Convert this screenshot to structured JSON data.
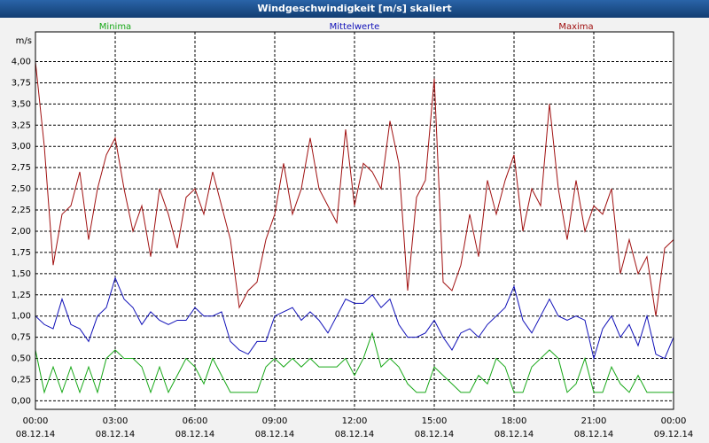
{
  "chart_data": {
    "type": "line",
    "title": "Windgeschwindigkeit [m/s] skaliert",
    "y_axis_label": "m/s",
    "x": [
      0,
      20,
      40,
      60,
      80,
      100,
      120,
      140,
      160,
      180,
      200,
      220,
      240,
      260,
      280,
      300,
      320,
      340,
      360,
      380,
      400,
      420,
      440,
      460,
      480,
      500,
      520,
      540,
      560,
      580,
      600,
      620,
      640,
      660,
      680,
      700,
      720,
      740,
      760,
      780,
      800,
      820,
      840,
      860,
      880,
      900,
      920,
      940,
      960,
      980,
      1000,
      1020,
      1040,
      1060,
      1080,
      1100,
      1120,
      1140,
      1160,
      1180,
      1200,
      1220,
      1240,
      1260,
      1280,
      1300,
      1320,
      1340,
      1360,
      1380,
      1400,
      1420,
      1440
    ],
    "series": [
      {
        "name": "Minima",
        "color": "#18a818",
        "values": [
          0.6,
          0.1,
          0.4,
          0.1,
          0.4,
          0.1,
          0.4,
          0.1,
          0.5,
          0.6,
          0.5,
          0.5,
          0.4,
          0.1,
          0.4,
          0.1,
          0.3,
          0.5,
          0.4,
          0.2,
          0.5,
          0.3,
          0.1,
          0.1,
          0.1,
          0.1,
          0.4,
          0.5,
          0.4,
          0.5,
          0.4,
          0.5,
          0.4,
          0.4,
          0.4,
          0.5,
          0.3,
          0.5,
          0.8,
          0.4,
          0.5,
          0.4,
          0.2,
          0.1,
          0.1,
          0.4,
          0.3,
          0.2,
          0.1,
          0.1,
          0.3,
          0.2,
          0.5,
          0.4,
          0.1,
          0.1,
          0.4,
          0.5,
          0.6,
          0.5,
          0.1,
          0.2,
          0.5,
          0.1,
          0.1,
          0.4,
          0.2,
          0.1,
          0.3,
          0.1,
          0.1,
          0.1,
          0.1
        ]
      },
      {
        "name": "Mittelwerte",
        "color": "#1010b8",
        "values": [
          1.0,
          0.9,
          0.85,
          1.2,
          0.9,
          0.85,
          0.7,
          1.0,
          1.1,
          1.45,
          1.2,
          1.1,
          0.9,
          1.05,
          0.95,
          0.9,
          0.95,
          0.95,
          1.1,
          1.0,
          1.0,
          1.05,
          0.7,
          0.6,
          0.55,
          0.7,
          0.7,
          1.0,
          1.05,
          1.1,
          0.95,
          1.05,
          0.95,
          0.8,
          1.0,
          1.2,
          1.15,
          1.15,
          1.25,
          1.1,
          1.2,
          0.9,
          0.75,
          0.75,
          0.8,
          0.95,
          0.75,
          0.6,
          0.8,
          0.85,
          0.75,
          0.9,
          1.0,
          1.1,
          1.35,
          0.95,
          0.8,
          1.0,
          1.2,
          1.0,
          0.95,
          1.0,
          0.95,
          0.5,
          0.85,
          1.0,
          0.75,
          0.9,
          0.65,
          1.0,
          0.55,
          0.5,
          0.75
        ]
      },
      {
        "name": "Maxima",
        "color": "#a01010",
        "values": [
          4.0,
          3.0,
          1.6,
          2.2,
          2.3,
          2.7,
          1.9,
          2.5,
          2.9,
          3.1,
          2.5,
          2.0,
          2.3,
          1.7,
          2.5,
          2.2,
          1.8,
          2.4,
          2.5,
          2.2,
          2.7,
          2.3,
          1.9,
          1.1,
          1.3,
          1.4,
          1.9,
          2.2,
          2.8,
          2.2,
          2.5,
          3.1,
          2.5,
          2.3,
          2.1,
          3.2,
          2.3,
          2.8,
          2.7,
          2.5,
          3.3,
          2.8,
          1.3,
          2.4,
          2.6,
          3.8,
          1.4,
          1.3,
          1.6,
          2.2,
          1.7,
          2.6,
          2.2,
          2.6,
          2.9,
          2.0,
          2.5,
          2.3,
          3.5,
          2.5,
          1.9,
          2.6,
          2.0,
          2.3,
          2.2,
          2.5,
          1.5,
          1.9,
          1.5,
          1.7,
          1.0,
          1.8,
          1.9
        ]
      }
    ],
    "xlim": [
      0,
      1440
    ],
    "xticks": [
      {
        "value": 0,
        "label": "00:00",
        "date": "08.12.14"
      },
      {
        "value": 180,
        "label": "03:00",
        "date": "08.12.14"
      },
      {
        "value": 360,
        "label": "06:00",
        "date": "08.12.14"
      },
      {
        "value": 540,
        "label": "09:00",
        "date": "08.12.14"
      },
      {
        "value": 720,
        "label": "12:00",
        "date": "08.12.14"
      },
      {
        "value": 900,
        "label": "15:00",
        "date": "08.12.14"
      },
      {
        "value": 1080,
        "label": "18:00",
        "date": "08.12.14"
      },
      {
        "value": 1260,
        "label": "21:00",
        "date": "08.12.14"
      },
      {
        "value": 1440,
        "label": "00:00",
        "date": "09.12.14"
      }
    ],
    "ylim": [
      -0.1,
      4.35
    ],
    "yticks": [
      {
        "value": 0,
        "label": "0,00"
      },
      {
        "value": 0.25,
        "label": "0,25"
      },
      {
        "value": 0.5,
        "label": "0,50"
      },
      {
        "value": 0.75,
        "label": "0,75"
      },
      {
        "value": 1,
        "label": "1,00"
      },
      {
        "value": 1.25,
        "label": "1,25"
      },
      {
        "value": 1.5,
        "label": "1,50"
      },
      {
        "value": 1.75,
        "label": "1,75"
      },
      {
        "value": 2,
        "label": "2,00"
      },
      {
        "value": 2.25,
        "label": "2,25"
      },
      {
        "value": 2.5,
        "label": "2,50"
      },
      {
        "value": 2.75,
        "label": "2,75"
      },
      {
        "value": 3,
        "label": "3,00"
      },
      {
        "value": 3.25,
        "label": "3,25"
      },
      {
        "value": 3.5,
        "label": "3,50"
      },
      {
        "value": 3.75,
        "label": "3,75"
      },
      {
        "value": 4,
        "label": "4,00"
      }
    ],
    "grid": true
  }
}
